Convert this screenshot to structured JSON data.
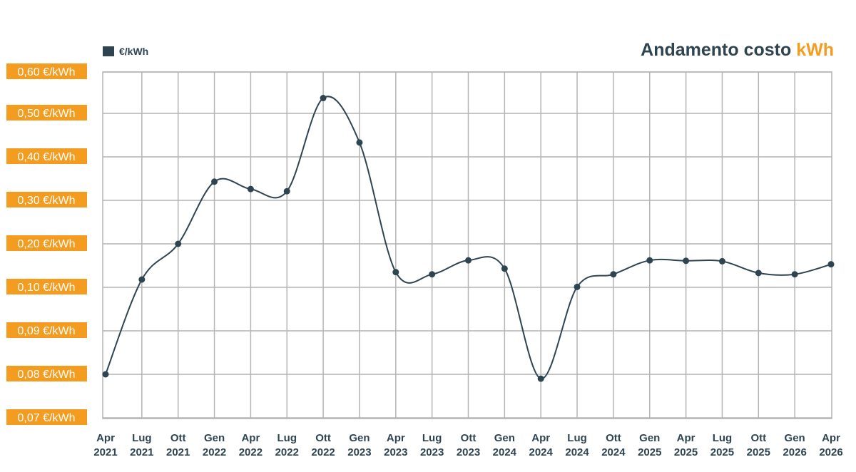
{
  "title": {
    "main": "Andamento costo ",
    "accent": "kWh"
  },
  "colors": {
    "series": "#2e4451",
    "accent": "#f39c1f",
    "grid": "#b4b4b4"
  },
  "chart_data": {
    "type": "line",
    "title": "Andamento costo kWh",
    "legend": {
      "position": "top-left"
    },
    "grid": true,
    "y_ticks": [
      0.07,
      0.08,
      0.09,
      0.1,
      0.2,
      0.3,
      0.4,
      0.5,
      0.6
    ],
    "y_tick_labels": [
      "0,07 €/kWh",
      "0,08 €/kWh",
      "0,09 €/kWh",
      "0,10 €/kWh",
      "0,20 €/kWh",
      "0,30 €/kWh",
      "0,40 €/kWh",
      "0,50 €/kWh",
      "0,60 €/kWh"
    ],
    "y_scale": "piecewise-linear between printed ticks",
    "categories": [
      [
        "Apr",
        "2021"
      ],
      [
        "Lug",
        "2021"
      ],
      [
        "Ott",
        "2021"
      ],
      [
        "Gen",
        "2022"
      ],
      [
        "Apr",
        "2022"
      ],
      [
        "Lug",
        "2022"
      ],
      [
        "Ott",
        "2022"
      ],
      [
        "Gen",
        "2023"
      ],
      [
        "Apr",
        "2023"
      ],
      [
        "Lug",
        "2023"
      ],
      [
        "Ott",
        "2023"
      ],
      [
        "Gen",
        "2024"
      ],
      [
        "Apr",
        "2024"
      ],
      [
        "Lug",
        "2024"
      ],
      [
        "Ott",
        "2024"
      ],
      [
        "Gen",
        "2025"
      ],
      [
        "Apr",
        "2025"
      ],
      [
        "Lug",
        "2025"
      ],
      [
        "Ott",
        "2025"
      ],
      [
        "Gen",
        "2026"
      ],
      [
        "Apr",
        "2026"
      ]
    ],
    "series": [
      {
        "name": "€/kWh",
        "values": [
          0.08,
          0.118,
          0.2,
          0.343,
          0.326,
          0.321,
          0.537,
          0.433,
          0.135,
          0.13,
          0.162,
          0.143,
          0.079,
          0.101,
          0.13,
          0.162,
          0.161,
          0.16,
          0.133,
          0.13,
          0.153
        ]
      }
    ]
  }
}
